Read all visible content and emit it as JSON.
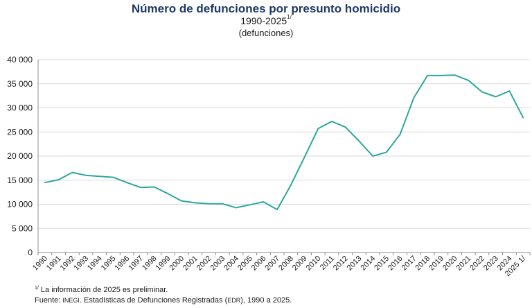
{
  "chart_data": {
    "type": "line",
    "title": "Número de defunciones por presunto homicidio",
    "subtitle": "1990-2025",
    "subtitle_marker": "1/",
    "units_label": "(defunciones)",
    "categories": [
      "1990",
      "1991",
      "1992",
      "1993",
      "1994",
      "1995",
      "1996",
      "1997",
      "1998",
      "1999",
      "2000",
      "2001",
      "2002",
      "2003",
      "2004",
      "2005",
      "2006",
      "2007",
      "2008",
      "2009",
      "2010",
      "2011",
      "2012",
      "2013",
      "2014",
      "2015",
      "2016",
      "2017",
      "2018",
      "2019",
      "2020",
      "2021",
      "2022",
      "2023",
      "2024",
      "2025 1/"
    ],
    "values": [
      14500,
      15100,
      16600,
      16000,
      15800,
      15600,
      14500,
      13500,
      13600,
      12200,
      10700,
      10300,
      10100,
      10100,
      9300,
      9900,
      10500,
      8900,
      14000,
      19800,
      25700,
      27200,
      26000,
      23100,
      20000,
      20800,
      24500,
      32100,
      36700,
      36700,
      36800,
      35700,
      33300,
      32300,
      33500,
      28000
    ],
    "y_tick_labels": [
      "0",
      "5 000",
      "10 000",
      "15 000",
      "20 000",
      "25 000",
      "30 000",
      "35 000",
      "40 000"
    ],
    "y_ticks": [
      0,
      5000,
      10000,
      15000,
      20000,
      25000,
      30000,
      35000,
      40000
    ],
    "ylim": [
      0,
      40000
    ],
    "grid": true,
    "line_color": "#2aa6a0",
    "grid_color": "#d9d9d9",
    "axis_color": "#8c8c8c",
    "title_color": "#1f3864"
  },
  "footnotes": {
    "note_marker": "1/",
    "note_text": " La información de 2025 es preliminar.",
    "source_prefix": "Fuente: ",
    "source_org": "INEGI",
    "source_mid": ". Estadísticas de Defunciones Registradas (",
    "source_abbr": "EDR",
    "source_end": "), 1990 a 2025."
  }
}
